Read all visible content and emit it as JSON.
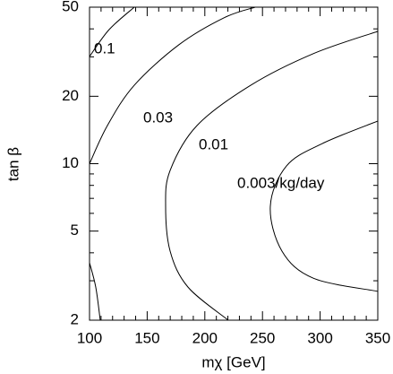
{
  "chart_data": {
    "type": "line",
    "x_label": "mχ [GeV]",
    "y_label": "tan β",
    "xlim": [
      100,
      350
    ],
    "ylim": [
      2,
      50
    ],
    "y_scale": "log",
    "xticks": [
      100,
      150,
      200,
      250,
      300,
      350
    ],
    "yticks": [
      2,
      5,
      10,
      20,
      50
    ],
    "xminorticks": [
      110,
      120,
      130,
      140,
      160,
      170,
      180,
      190,
      210,
      220,
      230,
      240,
      260,
      270,
      280,
      290,
      310,
      320,
      330,
      340
    ],
    "yminorticks": [
      3,
      4,
      6,
      7,
      8,
      9,
      30,
      40
    ],
    "series": [
      {
        "name": "0.1",
        "color": "#000000",
        "x": [
          100,
          117,
          138.8
        ],
        "values": [
          30.1,
          39.7,
          50
        ]
      },
      {
        "name": "0.03",
        "color": "#000000",
        "x": [
          100,
          115.5,
          138.8,
          177.6,
          216.5,
          243.6
        ],
        "values": [
          10,
          14.8,
          22.4,
          34,
          44.8,
          50
        ]
      },
      {
        "name": "0.01",
        "color": "#000000",
        "x": [
          220.3,
          185.4,
          169.9,
          166,
          169.9,
          193.2,
          239.8,
          294.1,
          350
        ],
        "values": [
          2,
          2.81,
          4.07,
          6.45,
          9.33,
          14.8,
          22.4,
          31,
          39
        ]
      },
      {
        "name": "0.003/kg/day",
        "color": "#000000",
        "x": [
          350,
          294.1,
          266.9,
          256.8,
          270.8,
          301.9,
          350
        ],
        "values": [
          2.69,
          3.08,
          4.07,
          6.45,
          9.77,
          12.3,
          15.5
        ]
      },
      {
        "name": null,
        "color": "#000000",
        "x": [
          100,
          105.4,
          109.3
        ],
        "values": [
          3.61,
          2.81,
          2
        ]
      }
    ]
  }
}
